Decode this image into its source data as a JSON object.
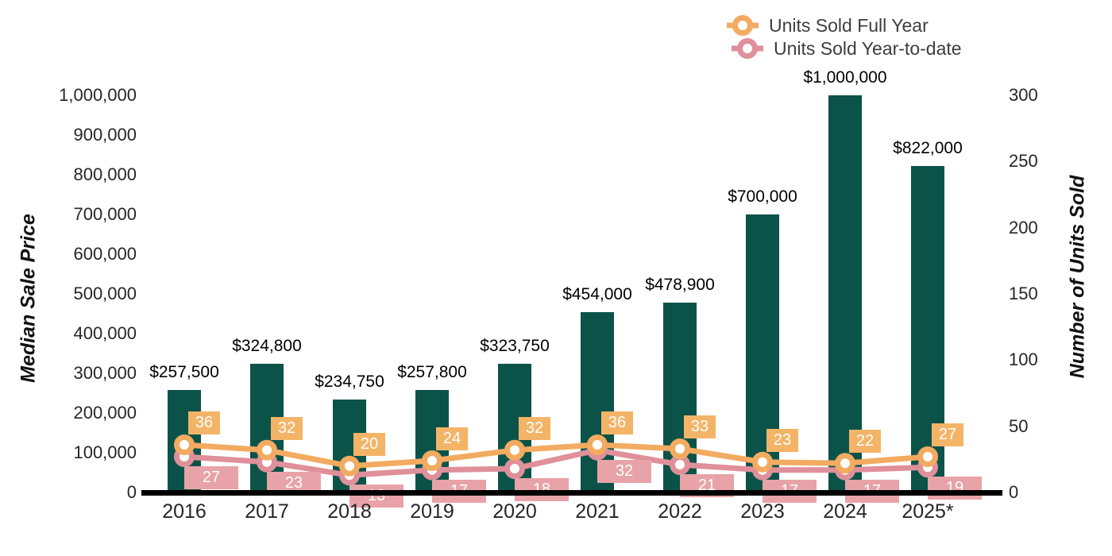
{
  "legend": {
    "items": [
      {
        "label": "Units Sold Full Year",
        "color": "#f2ab60"
      },
      {
        "label": "Units Sold Year-to-date",
        "color": "#df909a"
      }
    ]
  },
  "left_axis": {
    "title": "Median Sale Price",
    "tick_labels": [
      "1,000,000",
      "900,000",
      "800,000",
      "700,000",
      "600,000",
      "500,000",
      "400,000",
      "300,000",
      "200,000",
      "100,000",
      "0"
    ]
  },
  "right_axis": {
    "title": "Number of Units Sold",
    "tick_labels": [
      "300",
      "250",
      "200",
      "150",
      "100",
      "50",
      "0"
    ]
  },
  "x_axis": {
    "categories": [
      "2016",
      "2017",
      "2018",
      "2019",
      "2020",
      "2021",
      "2022",
      "2023",
      "2024",
      "2025*"
    ]
  },
  "chart_data": {
    "type": "bar+line combo, dual axis",
    "categories": [
      "2016",
      "2017",
      "2018",
      "2019",
      "2020",
      "2021",
      "2022",
      "2023",
      "2024",
      "2025*"
    ],
    "bar_series": {
      "name": "Median Sale Price",
      "axis": "left",
      "values": [
        257500,
        324800,
        234750,
        257800,
        323750,
        454000,
        478900,
        700000,
        1000000,
        822000
      ],
      "labels": [
        "$257,500",
        "$324,800",
        "$234,750",
        "$257,800",
        "$323,750",
        "$454,000",
        "$478,900",
        "$700,000",
        "$1,000,000",
        "$822,000"
      ],
      "color": "#0b5349"
    },
    "line_series": [
      {
        "name": "Units Sold Full Year",
        "axis": "right",
        "values": [
          36,
          32,
          20,
          24,
          32,
          36,
          33,
          23,
          22,
          27
        ],
        "color": "#f2ab60",
        "label_bg": "#f4b468"
      },
      {
        "name": "Units Sold Year-to-date",
        "axis": "right",
        "values": [
          27,
          23,
          13,
          17,
          18,
          32,
          21,
          17,
          17,
          19
        ],
        "color": "#df909a",
        "label_bg": "#e8a3a8"
      }
    ],
    "left_ylabel": "Median Sale Price",
    "right_ylabel": "Number of Units Sold",
    "left_ylim": [
      0,
      1000000
    ],
    "right_ylim": [
      0,
      300
    ],
    "grid": false,
    "legend_position": "top-right"
  }
}
